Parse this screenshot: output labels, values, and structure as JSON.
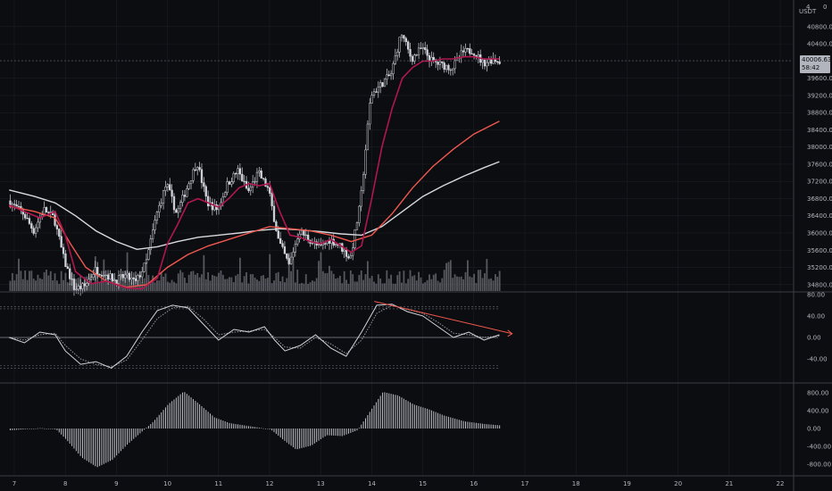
{
  "header": {
    "axis_corner_number": "4",
    "currency": "USDT",
    "axis_corner_zero": "0"
  },
  "colors": {
    "background": "#0c0d10",
    "candle": "#d1d4dc",
    "ma_fast": "#b0174f",
    "ma_mid": "#f0584f",
    "ma_slow": "#d7d9df",
    "volume": "#9598a1",
    "osc_line": "#d1d4dc",
    "trendline": "#f0584f",
    "grid": "#1c1e24",
    "separator": "#3a3d45",
    "price_tag": "#b2b5be"
  },
  "chart_data": [
    {
      "type": "candlestick",
      "panel": "price",
      "currency": "USDT",
      "x_ticks": [
        "7",
        "8",
        "9",
        "10",
        "11",
        "12",
        "13",
        "14",
        "15",
        "16",
        "17",
        "18",
        "19",
        "20",
        "21",
        "22"
      ],
      "y_ticks": [
        "40800.00",
        "40400.00",
        "39600.00",
        "39200.00",
        "38800.00",
        "38400.00",
        "38000.00",
        "37600.00",
        "37200.00",
        "36800.00",
        "36400.00",
        "36000.00",
        "35600.00",
        "35200.00",
        "34800.00"
      ],
      "ylim": [
        34650,
        41420
      ],
      "last_price": {
        "label": "40006.63",
        "countdown": "58:42",
        "value": 40006.63
      },
      "price_path": [
        [
          6.9,
          36750
        ],
        [
          7.2,
          36450
        ],
        [
          7.4,
          36050
        ],
        [
          7.6,
          36550
        ],
        [
          7.8,
          36350
        ],
        [
          8.0,
          35350
        ],
        [
          8.2,
          34700
        ],
        [
          8.4,
          34760
        ],
        [
          8.6,
          35150
        ],
        [
          8.8,
          35050
        ],
        [
          9.0,
          34900
        ],
        [
          9.2,
          35000
        ],
        [
          9.4,
          34850
        ],
        [
          9.6,
          35300
        ],
        [
          9.8,
          36400
        ],
        [
          10.0,
          37150
        ],
        [
          10.2,
          36450
        ],
        [
          10.4,
          37050
        ],
        [
          10.6,
          37650
        ],
        [
          10.8,
          36700
        ],
        [
          11.0,
          36550
        ],
        [
          11.2,
          37150
        ],
        [
          11.4,
          37450
        ],
        [
          11.6,
          36950
        ],
        [
          11.8,
          37400
        ],
        [
          12.0,
          37000
        ],
        [
          12.2,
          35800
        ],
        [
          12.4,
          35250
        ],
        [
          12.6,
          36050
        ],
        [
          12.8,
          35850
        ],
        [
          13.0,
          35650
        ],
        [
          13.2,
          35850
        ],
        [
          13.4,
          35700
        ],
        [
          13.6,
          35400
        ],
        [
          13.8,
          36700
        ],
        [
          14.0,
          39200
        ],
        [
          14.2,
          39450
        ],
        [
          14.4,
          39700
        ],
        [
          14.6,
          40650
        ],
        [
          14.8,
          40050
        ],
        [
          15.0,
          40300
        ],
        [
          15.2,
          40000
        ],
        [
          15.4,
          39900
        ],
        [
          15.6,
          39850
        ],
        [
          15.8,
          40200
        ],
        [
          16.0,
          40250
        ],
        [
          16.2,
          39950
        ],
        [
          16.4,
          40050
        ],
        [
          16.5,
          40006.63
        ]
      ],
      "series": [
        {
          "role": "short moving average",
          "points": [
            [
              6.9,
              36650
            ],
            [
              7.5,
              36350
            ],
            [
              7.8,
              36500
            ],
            [
              8.0,
              35950
            ],
            [
              8.2,
              35100
            ],
            [
              8.5,
              34820
            ],
            [
              8.8,
              34880
            ],
            [
              9.2,
              34720
            ],
            [
              9.5,
              34700
            ],
            [
              9.8,
              34950
            ],
            [
              10.0,
              35750
            ],
            [
              10.2,
              36200
            ],
            [
              10.4,
              36700
            ],
            [
              10.6,
              36800
            ],
            [
              10.8,
              36700
            ],
            [
              11.0,
              36600
            ],
            [
              11.2,
              36800
            ],
            [
              11.4,
              37050
            ],
            [
              11.6,
              37150
            ],
            [
              11.8,
              37100
            ],
            [
              12.0,
              37150
            ],
            [
              12.2,
              36500
            ],
            [
              12.4,
              35950
            ],
            [
              12.6,
              35900
            ],
            [
              12.8,
              35800
            ],
            [
              13.0,
              35750
            ],
            [
              13.2,
              35850
            ],
            [
              13.4,
              35700
            ],
            [
              13.6,
              35550
            ],
            [
              13.8,
              35700
            ],
            [
              14.0,
              36800
            ],
            [
              14.2,
              38000
            ],
            [
              14.4,
              38900
            ],
            [
              14.6,
              39600
            ],
            [
              14.8,
              39850
            ],
            [
              15.0,
              40000
            ],
            [
              15.2,
              40000
            ],
            [
              15.4,
              40050
            ],
            [
              15.6,
              40050
            ],
            [
              15.8,
              40100
            ],
            [
              16.0,
              40100
            ],
            [
              16.2,
              40050
            ],
            [
              16.5,
              40050
            ]
          ]
        },
        {
          "role": "middle moving average",
          "points": [
            [
              6.9,
              36620
            ],
            [
              7.4,
              36500
            ],
            [
              7.8,
              36350
            ],
            [
              8.1,
              35750
            ],
            [
              8.4,
              35200
            ],
            [
              8.8,
              34880
            ],
            [
              9.2,
              34740
            ],
            [
              9.6,
              34800
            ],
            [
              10.0,
              35200
            ],
            [
              10.4,
              35500
            ],
            [
              10.8,
              35700
            ],
            [
              11.2,
              35850
            ],
            [
              11.6,
              36000
            ],
            [
              12.0,
              36150
            ],
            [
              12.4,
              36100
            ],
            [
              12.8,
              36050
            ],
            [
              13.2,
              35950
            ],
            [
              13.6,
              35800
            ],
            [
              14.0,
              35950
            ],
            [
              14.4,
              36450
            ],
            [
              14.8,
              37050
            ],
            [
              15.2,
              37550
            ],
            [
              15.6,
              37950
            ],
            [
              16.0,
              38300
            ],
            [
              16.5,
              38600
            ]
          ]
        },
        {
          "role": "long moving average",
          "points": [
            [
              6.9,
              37000
            ],
            [
              7.4,
              36850
            ],
            [
              7.8,
              36700
            ],
            [
              8.2,
              36400
            ],
            [
              8.6,
              36050
            ],
            [
              9.0,
              35800
            ],
            [
              9.4,
              35620
            ],
            [
              9.8,
              35680
            ],
            [
              10.2,
              35800
            ],
            [
              10.6,
              35900
            ],
            [
              11.0,
              35950
            ],
            [
              11.4,
              36000
            ],
            [
              11.8,
              36060
            ],
            [
              12.2,
              36100
            ],
            [
              12.6,
              36070
            ],
            [
              13.0,
              36030
            ],
            [
              13.4,
              35980
            ],
            [
              13.8,
              35950
            ],
            [
              14.2,
              36150
            ],
            [
              14.6,
              36500
            ],
            [
              15.0,
              36850
            ],
            [
              15.4,
              37100
            ],
            [
              15.8,
              37320
            ],
            [
              16.2,
              37520
            ],
            [
              16.5,
              37660
            ]
          ]
        }
      ]
    },
    {
      "type": "line",
      "panel": "oscillator",
      "y_ticks": [
        "80.00",
        "40.00",
        "0.00",
        "-40.00"
      ],
      "ylim": [
        -83,
        83
      ],
      "band_levels": [
        57.5,
        53.2,
        -52.3,
        -57.6
      ],
      "zero_level": 0,
      "series": [
        {
          "role": "oscillator",
          "points": [
            [
              6.9,
              0
            ],
            [
              7.2,
              -10
            ],
            [
              7.5,
              10
            ],
            [
              7.8,
              5
            ],
            [
              8.0,
              -25
            ],
            [
              8.3,
              -50
            ],
            [
              8.6,
              -45
            ],
            [
              8.9,
              -57
            ],
            [
              9.2,
              -35
            ],
            [
              9.5,
              10
            ],
            [
              9.8,
              50
            ],
            [
              10.1,
              60
            ],
            [
              10.4,
              55
            ],
            [
              10.7,
              25
            ],
            [
              11.0,
              -5
            ],
            [
              11.3,
              15
            ],
            [
              11.6,
              10
            ],
            [
              11.9,
              20
            ],
            [
              12.1,
              -5
            ],
            [
              12.3,
              -25
            ],
            [
              12.6,
              -15
            ],
            [
              12.9,
              5
            ],
            [
              13.2,
              -20
            ],
            [
              13.5,
              -35
            ],
            [
              13.8,
              10
            ],
            [
              14.1,
              60
            ],
            [
              14.4,
              62
            ],
            [
              14.7,
              48
            ],
            [
              15.0,
              40
            ],
            [
              15.3,
              20
            ],
            [
              15.6,
              0
            ],
            [
              15.9,
              10
            ],
            [
              16.2,
              -5
            ],
            [
              16.5,
              5
            ]
          ]
        },
        {
          "role": "signal",
          "points": [
            [
              6.9,
              0
            ],
            [
              7.2,
              -5
            ],
            [
              7.5,
              5
            ],
            [
              7.8,
              8
            ],
            [
              8.0,
              -15
            ],
            [
              8.3,
              -40
            ],
            [
              8.6,
              -50
            ],
            [
              8.9,
              -55
            ],
            [
              9.2,
              -42
            ],
            [
              9.5,
              -5
            ],
            [
              9.8,
              35
            ],
            [
              10.1,
              55
            ],
            [
              10.4,
              58
            ],
            [
              10.7,
              35
            ],
            [
              11.0,
              5
            ],
            [
              11.3,
              10
            ],
            [
              11.6,
              12
            ],
            [
              11.9,
              15
            ],
            [
              12.1,
              0
            ],
            [
              12.3,
              -18
            ],
            [
              12.6,
              -20
            ],
            [
              12.9,
              0
            ],
            [
              13.2,
              -12
            ],
            [
              13.5,
              -30
            ],
            [
              13.8,
              -5
            ],
            [
              14.1,
              45
            ],
            [
              14.4,
              60
            ],
            [
              14.7,
              52
            ],
            [
              15.0,
              45
            ],
            [
              15.3,
              28
            ],
            [
              15.6,
              8
            ],
            [
              15.9,
              5
            ],
            [
              16.2,
              0
            ],
            [
              16.5,
              3
            ]
          ]
        }
      ],
      "trendline": [
        [
          14.05,
          67
        ],
        [
          16.75,
          7
        ]
      ]
    },
    {
      "type": "bar",
      "panel": "histogram",
      "y_ticks": [
        "800.00",
        "400.00",
        "0.00",
        "-400.00",
        "-800.00"
      ],
      "ylim": [
        -1000,
        1000
      ],
      "series": [
        {
          "role": "histogram",
          "points": [
            [
              6.9,
              -40
            ],
            [
              7.5,
              10
            ],
            [
              7.8,
              -20
            ],
            [
              8.0,
              -250
            ],
            [
              8.3,
              -650
            ],
            [
              8.6,
              -870
            ],
            [
              8.9,
              -700
            ],
            [
              9.2,
              -350
            ],
            [
              9.5,
              -50
            ],
            [
              9.7,
              150
            ],
            [
              10.0,
              550
            ],
            [
              10.3,
              830
            ],
            [
              10.6,
              550
            ],
            [
              10.9,
              250
            ],
            [
              11.2,
              120
            ],
            [
              11.6,
              50
            ],
            [
              12.0,
              -20
            ],
            [
              12.3,
              -300
            ],
            [
              12.5,
              -470
            ],
            [
              12.8,
              -380
            ],
            [
              13.1,
              -150
            ],
            [
              13.4,
              -170
            ],
            [
              13.7,
              -40
            ],
            [
              13.9,
              300
            ],
            [
              14.2,
              820
            ],
            [
              14.5,
              740
            ],
            [
              14.8,
              540
            ],
            [
              15.1,
              430
            ],
            [
              15.4,
              290
            ],
            [
              15.8,
              160
            ],
            [
              16.2,
              100
            ],
            [
              16.5,
              70
            ]
          ]
        }
      ]
    }
  ]
}
